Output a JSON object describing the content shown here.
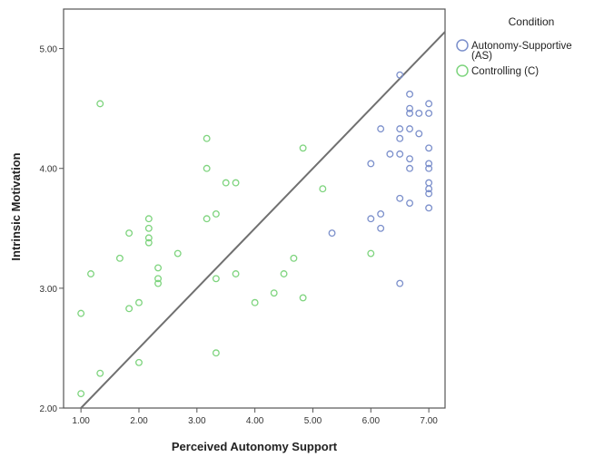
{
  "chart_data": {
    "type": "scatter",
    "xlabel": "Perceived Autonomy Support",
    "ylabel": "Intrinsic Motivation",
    "xlim": [
      0.7,
      7.28
    ],
    "ylim": [
      2.0,
      5.33
    ],
    "x_ticks": [
      "1.00",
      "2.00",
      "3.00",
      "4.00",
      "5.00",
      "6.00",
      "7.00"
    ],
    "y_ticks": [
      "2.00",
      "3.00",
      "4.00",
      "5.00"
    ],
    "grid": false,
    "legend": {
      "title": "Condition",
      "placement": "right-outside",
      "items": [
        {
          "label_lines": [
            "Autonomy-Supportive",
            "(AS)"
          ],
          "color": "#7b8fcb"
        },
        {
          "label_lines": [
            "Controlling (C)"
          ],
          "color": "#7ed47e"
        }
      ]
    },
    "reference_line": {
      "from": [
        1.0,
        2.0
      ],
      "to": [
        7.28,
        5.14
      ],
      "color": "#707070"
    },
    "series": [
      {
        "name": "Autonomy-Supportive (AS)",
        "color": "#7b8fcb",
        "points": [
          [
            6.5,
            4.78
          ],
          [
            6.67,
            4.62
          ],
          [
            6.67,
            4.5
          ],
          [
            6.67,
            4.46
          ],
          [
            6.83,
            4.46
          ],
          [
            7.0,
            4.54
          ],
          [
            7.0,
            4.46
          ],
          [
            6.17,
            4.33
          ],
          [
            6.5,
            4.33
          ],
          [
            6.67,
            4.33
          ],
          [
            6.83,
            4.29
          ],
          [
            6.5,
            4.25
          ],
          [
            7.0,
            4.17
          ],
          [
            6.33,
            4.12
          ],
          [
            6.5,
            4.12
          ],
          [
            6.67,
            4.08
          ],
          [
            7.0,
            4.04
          ],
          [
            6.0,
            4.04
          ],
          [
            7.0,
            4.0
          ],
          [
            6.67,
            4.0
          ],
          [
            7.0,
            3.88
          ],
          [
            7.0,
            3.83
          ],
          [
            7.0,
            3.79
          ],
          [
            6.5,
            3.75
          ],
          [
            6.67,
            3.71
          ],
          [
            7.0,
            3.67
          ],
          [
            6.17,
            3.62
          ],
          [
            6.0,
            3.58
          ],
          [
            6.17,
            3.5
          ],
          [
            5.33,
            3.46
          ],
          [
            6.5,
            3.04
          ]
        ]
      },
      {
        "name": "Controlling (C)",
        "color": "#7ed47e",
        "points": [
          [
            1.33,
            4.54
          ],
          [
            3.17,
            4.25
          ],
          [
            4.83,
            4.17
          ],
          [
            3.17,
            4.0
          ],
          [
            3.5,
            3.88
          ],
          [
            3.67,
            3.88
          ],
          [
            5.17,
            3.83
          ],
          [
            3.33,
            3.62
          ],
          [
            2.17,
            3.58
          ],
          [
            3.17,
            3.58
          ],
          [
            2.17,
            3.5
          ],
          [
            1.83,
            3.46
          ],
          [
            2.17,
            3.42
          ],
          [
            2.17,
            3.38
          ],
          [
            2.67,
            3.29
          ],
          [
            6.0,
            3.29
          ],
          [
            1.67,
            3.25
          ],
          [
            4.67,
            3.25
          ],
          [
            2.33,
            3.17
          ],
          [
            1.17,
            3.12
          ],
          [
            3.67,
            3.12
          ],
          [
            4.5,
            3.12
          ],
          [
            2.33,
            3.08
          ],
          [
            3.33,
            3.08
          ],
          [
            2.33,
            3.04
          ],
          [
            4.33,
            2.96
          ],
          [
            4.83,
            2.92
          ],
          [
            2.0,
            2.88
          ],
          [
            4.0,
            2.88
          ],
          [
            1.83,
            2.83
          ],
          [
            1.0,
            2.79
          ],
          [
            3.33,
            2.46
          ],
          [
            2.0,
            2.38
          ],
          [
            1.33,
            2.29
          ],
          [
            1.0,
            2.12
          ]
        ]
      }
    ]
  }
}
